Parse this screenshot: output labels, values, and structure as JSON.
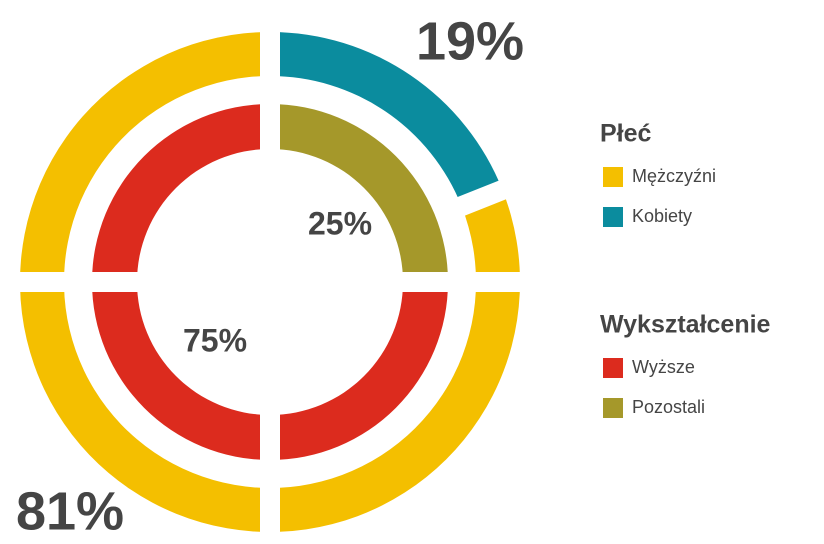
{
  "chart_data": {
    "type": "donut",
    "rings": [
      {
        "title": "Płeć",
        "categories": [
          "Mężczyźni",
          "Kobiety"
        ],
        "values": [
          81,
          19
        ],
        "value_labels": [
          "81%",
          "19%"
        ],
        "colors": [
          "#f4bf00",
          "#0b8c9e"
        ]
      },
      {
        "title": "Wykształcenie",
        "categories": [
          "Wyższe",
          "Pozostali"
        ],
        "values": [
          75,
          25
        ],
        "value_labels": [
          "75%",
          "25%"
        ],
        "colors": [
          "#dc2b1e",
          "#a5982a"
        ]
      }
    ]
  }
}
